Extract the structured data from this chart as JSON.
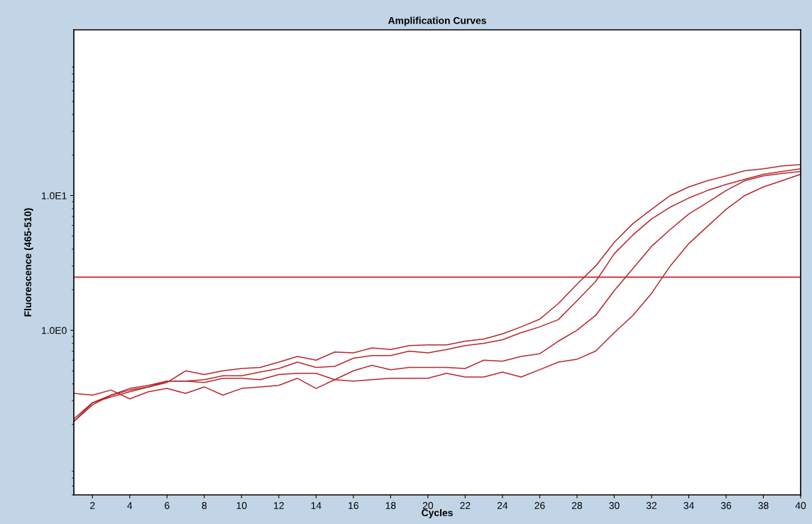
{
  "chart_data": {
    "type": "line",
    "title": "Amplification Curves",
    "xlabel": "Cycles",
    "ylabel": "Fluorescence (465-510)",
    "x": [
      1,
      2,
      3,
      4,
      5,
      6,
      7,
      8,
      9,
      10,
      11,
      12,
      13,
      14,
      15,
      16,
      17,
      18,
      19,
      20,
      21,
      22,
      23,
      24,
      25,
      26,
      27,
      28,
      29,
      30,
      31,
      32,
      33,
      34,
      35,
      36,
      37,
      38,
      39,
      40
    ],
    "series": [
      {
        "color": "#b8282e",
        "values": [
          0.22,
          0.29,
          0.32,
          0.35,
          0.38,
          0.41,
          0.5,
          0.47,
          0.5,
          0.52,
          0.53,
          0.58,
          0.64,
          0.6,
          0.69,
          0.68,
          0.74,
          0.72,
          0.77,
          0.78,
          0.78,
          0.83,
          0.86,
          0.94,
          1.06,
          1.21,
          1.58,
          2.2,
          3.0,
          4.5,
          6.2,
          7.9,
          10,
          11.6,
          12.9,
          14.0,
          15.3,
          15.8,
          16.6,
          17.0
        ]
      },
      {
        "color": "#b8282e",
        "values": [
          0.21,
          0.28,
          0.33,
          0.36,
          0.38,
          0.42,
          0.42,
          0.43,
          0.46,
          0.46,
          0.49,
          0.52,
          0.58,
          0.53,
          0.54,
          0.62,
          0.65,
          0.65,
          0.7,
          0.68,
          0.72,
          0.77,
          0.8,
          0.85,
          0.96,
          1.06,
          1.2,
          1.66,
          2.3,
          3.7,
          5.1,
          6.7,
          8.2,
          9.6,
          10.9,
          12.1,
          13.2,
          14.4,
          15.1,
          15.8
        ]
      },
      {
        "color": "#b8282e",
        "values": [
          0.34,
          0.33,
          0.36,
          0.31,
          0.35,
          0.37,
          0.34,
          0.38,
          0.33,
          0.37,
          0.38,
          0.39,
          0.44,
          0.37,
          0.43,
          0.5,
          0.55,
          0.51,
          0.53,
          0.53,
          0.53,
          0.52,
          0.6,
          0.59,
          0.64,
          0.67,
          0.83,
          1.0,
          1.29,
          1.97,
          2.87,
          4.2,
          5.6,
          7.3,
          8.9,
          10.9,
          12.9,
          14.0,
          14.6,
          15.1
        ]
      },
      {
        "color": "#b8282e",
        "values": [
          0.21,
          0.29,
          0.33,
          0.37,
          0.39,
          0.42,
          0.42,
          0.41,
          0.44,
          0.44,
          0.43,
          0.47,
          0.48,
          0.48,
          0.43,
          0.42,
          0.43,
          0.44,
          0.44,
          0.44,
          0.48,
          0.45,
          0.45,
          0.49,
          0.45,
          0.51,
          0.58,
          0.61,
          0.7,
          0.96,
          1.29,
          1.88,
          3.0,
          4.4,
          5.9,
          7.9,
          10,
          11.6,
          12.9,
          14.4
        ]
      }
    ],
    "log": "y",
    "xlim": [
      1,
      40
    ],
    "xticks": [
      2,
      4,
      6,
      8,
      10,
      12,
      14,
      16,
      18,
      20,
      22,
      24,
      26,
      28,
      30,
      32,
      34,
      36,
      38,
      40
    ],
    "ylim": [
      0.06,
      170
    ],
    "yticks": [
      {
        "value": 1,
        "label": "1.0E0"
      },
      {
        "value": 10,
        "label": "1.0E1"
      }
    ],
    "ref_lines": [
      {
        "axis": "y",
        "value": 2.48,
        "color": "#b8282e"
      }
    ],
    "grid": false,
    "legend": false
  }
}
